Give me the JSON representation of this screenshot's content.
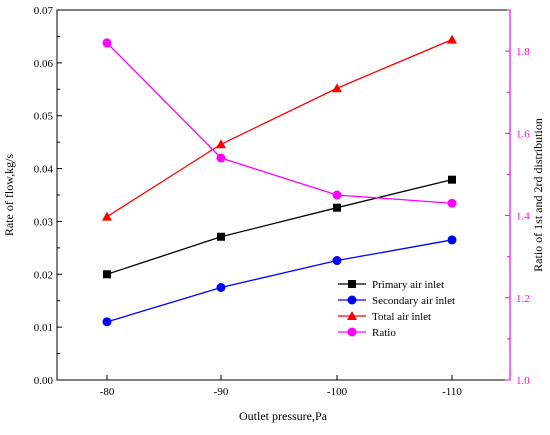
{
  "chart_data": {
    "type": "line",
    "xlabel": "Outlet pressure,Pa",
    "ylabel_left": "Rate of flow,kg/s",
    "ylabel_right": "Ratio of 1st and 2rd distribution",
    "categories": [
      "-80",
      "-90",
      "-100",
      "-110"
    ],
    "y_left_range": [
      0,
      0.07
    ],
    "y_left_ticks": [
      "0.00",
      "0.01",
      "0.02",
      "0.03",
      "0.04",
      "0.05",
      "0.06",
      "0.07"
    ],
    "y_right_range": [
      1.0,
      1.9
    ],
    "y_right_ticks": [
      "1.0",
      "1.2",
      "1.4",
      "1.6",
      "1.8"
    ],
    "grid": false,
    "legend_position": "lower-right",
    "series": [
      {
        "name": "Primary air inlet",
        "axis": "left",
        "color": "#000000",
        "marker": "square",
        "values": [
          0.02,
          0.0271,
          0.0326,
          0.0379
        ]
      },
      {
        "name": "Secondary air inlet",
        "axis": "left",
        "color": "#0000ff",
        "marker": "circle",
        "values": [
          0.011,
          0.0175,
          0.0226,
          0.0265
        ]
      },
      {
        "name": "Total air inlet",
        "axis": "left",
        "color": "#ff0000",
        "marker": "triangle",
        "values": [
          0.0309,
          0.0446,
          0.0552,
          0.0644
        ]
      },
      {
        "name": "Ratio",
        "axis": "right",
        "color": "#ff00ff",
        "marker": "circle",
        "values": [
          1.82,
          1.54,
          1.45,
          1.43
        ]
      }
    ]
  }
}
